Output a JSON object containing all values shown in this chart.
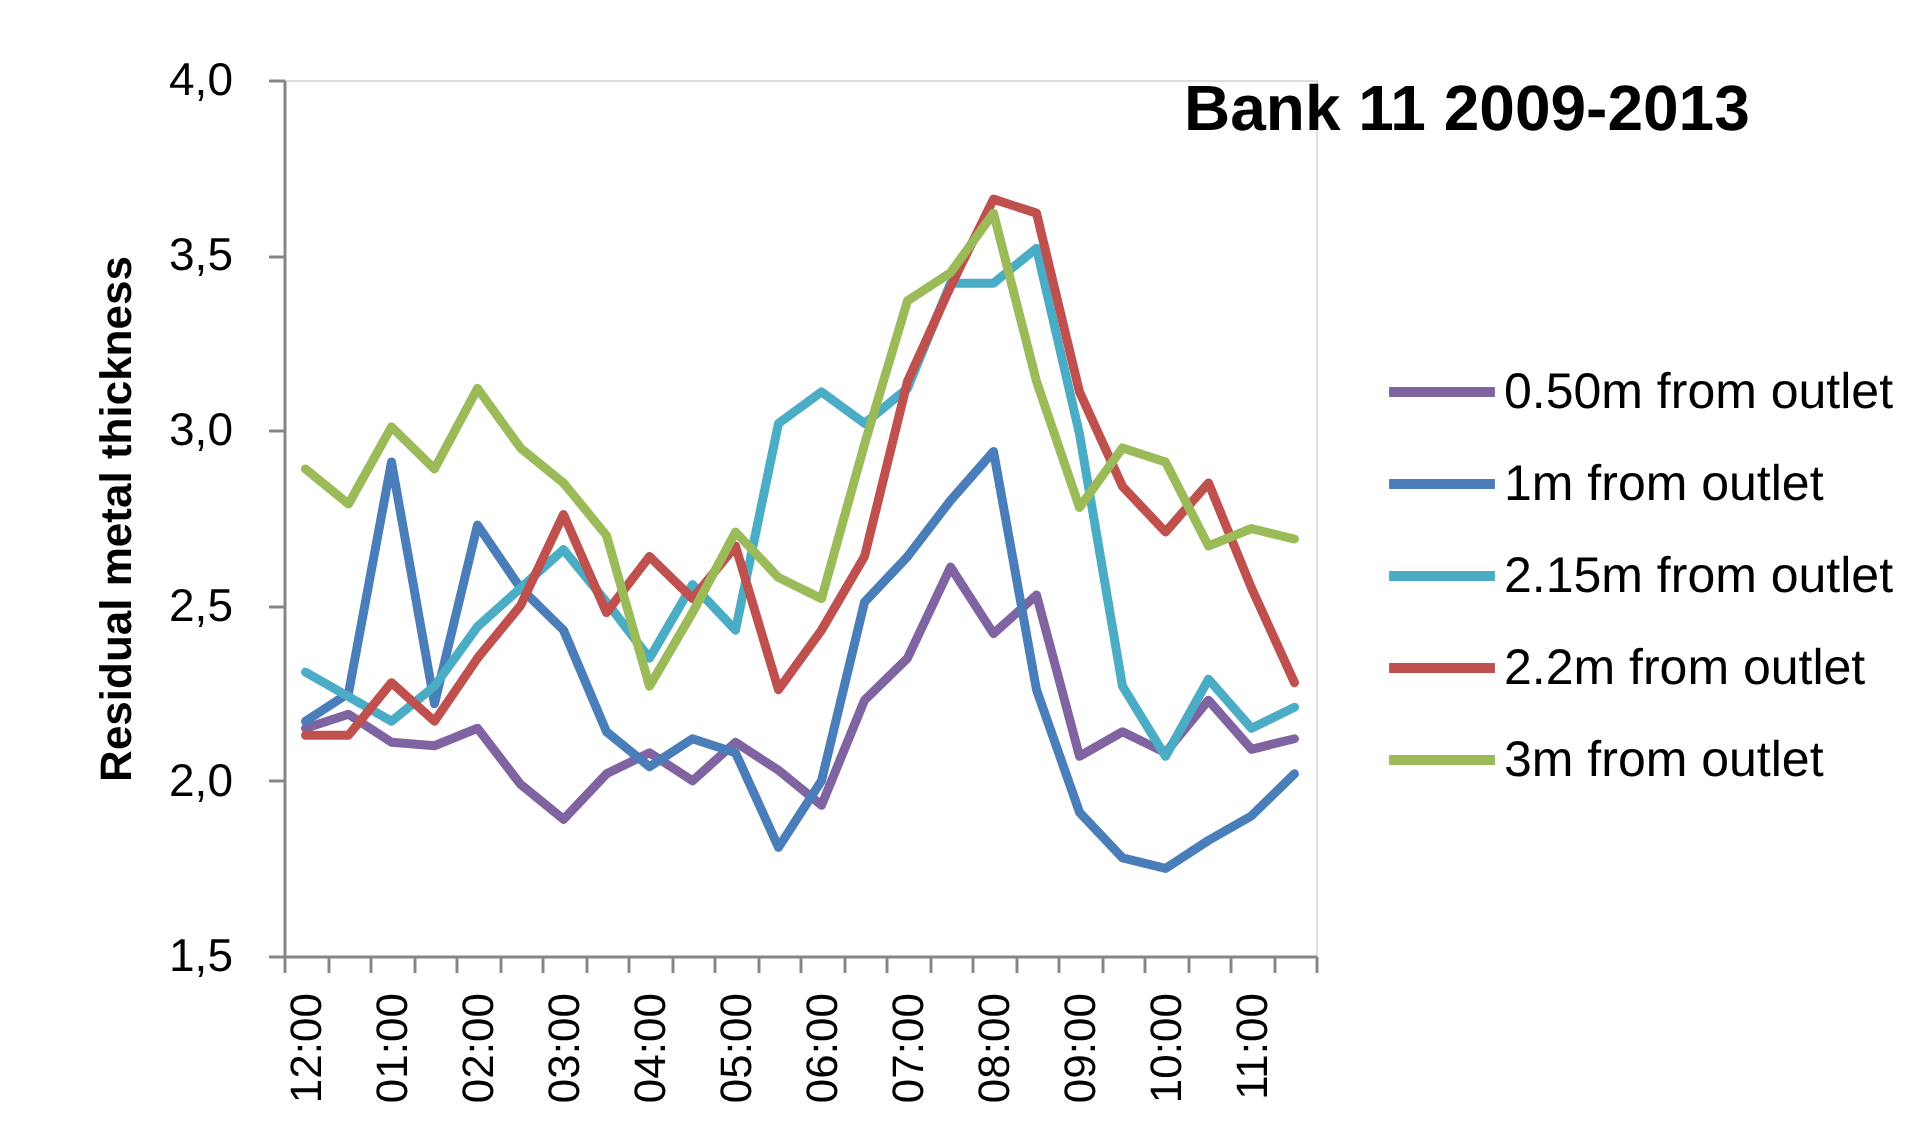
{
  "chart_data": {
    "type": "line",
    "title": "Bank 11 2009-2013",
    "ylabel": "Residual metal thickness",
    "categories": [
      "12:00",
      null,
      "01:00",
      null,
      "02:00",
      null,
      "03:00",
      null,
      "04:00",
      null,
      "05:00",
      null,
      "06:00",
      null,
      "07:00",
      null,
      "08:00",
      null,
      "09:00",
      null,
      "10:00",
      null,
      "11:00",
      null
    ],
    "series": [
      {
        "name": "0.50m from outlet",
        "color": "#8064a2",
        "values": [
          2.15,
          2.19,
          2.11,
          2.1,
          2.15,
          1.99,
          1.89,
          2.02,
          2.08,
          2.0,
          2.11,
          2.03,
          1.93,
          2.23,
          2.35,
          2.61,
          2.42,
          2.53,
          2.07,
          2.14,
          2.08,
          2.23,
          2.09,
          2.12
        ]
      },
      {
        "name": "1m from outlet",
        "color": "#4a7ebb",
        "values": [
          2.17,
          2.25,
          2.91,
          2.22,
          2.73,
          2.55,
          2.43,
          2.14,
          2.04,
          2.12,
          2.08,
          1.81,
          2.0,
          2.51,
          2.64,
          2.8,
          2.94,
          2.26,
          1.91,
          1.78,
          1.75,
          1.83,
          1.9,
          2.02
        ]
      },
      {
        "name": "2.15m from outlet",
        "color": "#4bacc6",
        "values": [
          2.31,
          2.24,
          2.17,
          2.27,
          2.44,
          2.55,
          2.66,
          2.51,
          2.35,
          2.56,
          2.43,
          3.02,
          3.11,
          3.02,
          3.12,
          3.42,
          3.42,
          3.52,
          2.99,
          2.27,
          2.07,
          2.29,
          2.15,
          2.21
        ]
      },
      {
        "name": "2.2m from outlet",
        "color": "#c0504d",
        "values": [
          2.13,
          2.13,
          2.28,
          2.17,
          2.35,
          2.5,
          2.76,
          2.48,
          2.64,
          2.52,
          2.67,
          2.26,
          2.43,
          2.64,
          3.14,
          3.41,
          3.66,
          3.62,
          3.11,
          2.84,
          2.71,
          2.85,
          2.55,
          2.28
        ]
      },
      {
        "name": "3m from outlet",
        "color": "#9bbb59",
        "values": [
          2.89,
          2.79,
          3.01,
          2.89,
          3.12,
          2.95,
          2.85,
          2.7,
          2.27,
          2.48,
          2.71,
          2.58,
          2.52,
          2.96,
          3.37,
          3.45,
          3.62,
          3.14,
          2.78,
          2.95,
          2.91,
          2.67,
          2.72,
          2.69
        ]
      }
    ],
    "ylim": [
      1.5,
      4.0
    ],
    "yticks": [
      {
        "value": 1.5,
        "label": "1,5"
      },
      {
        "value": 2.0,
        "label": "2,0"
      },
      {
        "value": 2.5,
        "label": "2,5"
      },
      {
        "value": 3.0,
        "label": "3,0"
      },
      {
        "value": 3.5,
        "label": "3,5"
      },
      {
        "value": 4.0,
        "label": "4,0"
      }
    ],
    "legend": "right",
    "line_style": "solid"
  }
}
